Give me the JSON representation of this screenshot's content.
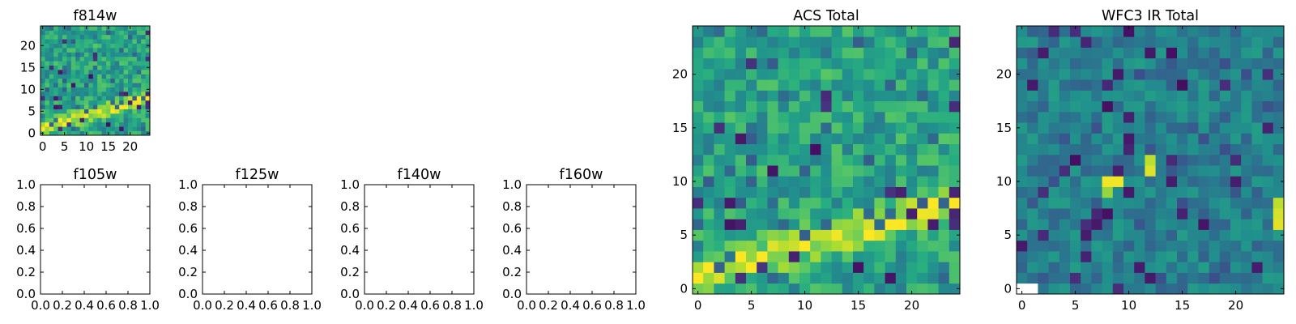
{
  "figure": {
    "panels": {
      "f814w": {
        "title": "f814w",
        "x_ticks": [
          "0",
          "5",
          "10",
          "15",
          "20"
        ],
        "y_ticks": [
          "0",
          "5",
          "10",
          "15",
          "20"
        ]
      },
      "f105w": {
        "title": "f105w",
        "x_ticks": [
          "0.0",
          "0.2",
          "0.4",
          "0.6",
          "0.8",
          "1.0"
        ],
        "y_ticks": [
          "0.0",
          "0.2",
          "0.4",
          "0.6",
          "0.8",
          "1.0"
        ]
      },
      "f125w": {
        "title": "f125w",
        "x_ticks": [
          "0.0",
          "0.2",
          "0.4",
          "0.6",
          "0.8",
          "1.0"
        ],
        "y_ticks": [
          "0.0",
          "0.2",
          "0.4",
          "0.6",
          "0.8",
          "1.0"
        ]
      },
      "f140w": {
        "title": "f140w",
        "x_ticks": [
          "0.0",
          "0.2",
          "0.4",
          "0.6",
          "0.8",
          "1.0"
        ],
        "y_ticks": [
          "0.0",
          "0.2",
          "0.4",
          "0.6",
          "0.8",
          "1.0"
        ]
      },
      "f160w": {
        "title": "f160w",
        "x_ticks": [
          "0.0",
          "0.2",
          "0.4",
          "0.6",
          "0.8",
          "1.0"
        ],
        "y_ticks": [
          "0.0",
          "0.2",
          "0.4",
          "0.6",
          "0.8",
          "1.0"
        ]
      },
      "acs_total": {
        "title": "ACS Total",
        "x_ticks": [
          "0",
          "5",
          "10",
          "15",
          "20"
        ],
        "y_ticks": [
          "0",
          "5",
          "10",
          "15",
          "20"
        ]
      },
      "wfc3_ir_total": {
        "title": "WFC3 IR Total",
        "x_ticks": [
          "0",
          "5",
          "10",
          "15",
          "20"
        ],
        "y_ticks": [
          "0",
          "5",
          "10",
          "15",
          "20"
        ]
      }
    }
  },
  "chart_data": [
    {
      "type": "heatmap",
      "title": "f814w",
      "colormap": "viridis",
      "colorbar": "none",
      "grid": "off",
      "xlim": [
        -0.5,
        24.5
      ],
      "ylim": [
        -0.5,
        24.5
      ],
      "x_ticks": [
        0,
        5,
        10,
        15,
        20
      ],
      "y_ticks": [
        0,
        5,
        10,
        15,
        20
      ],
      "description_of_values": "25x25 pixel grid; bright (yellow) diagonal band rising from lower-left (y≈1) to right edge (y≈8); remainder green/teal noise with scattered dark pixels"
    },
    {
      "type": "heatmap",
      "title": "f105w",
      "xlim": [
        0.0,
        1.0
      ],
      "ylim": [
        0.0,
        1.0
      ],
      "x_ticks": [
        0.0,
        0.2,
        0.4,
        0.6,
        0.8,
        1.0
      ],
      "y_ticks": [
        0.0,
        0.2,
        0.4,
        0.6,
        0.8,
        1.0
      ],
      "values": []
    },
    {
      "type": "heatmap",
      "title": "f125w",
      "xlim": [
        0.0,
        1.0
      ],
      "ylim": [
        0.0,
        1.0
      ],
      "x_ticks": [
        0.0,
        0.2,
        0.4,
        0.6,
        0.8,
        1.0
      ],
      "y_ticks": [
        0.0,
        0.2,
        0.4,
        0.6,
        0.8,
        1.0
      ],
      "values": []
    },
    {
      "type": "heatmap",
      "title": "f140w",
      "xlim": [
        0.0,
        1.0
      ],
      "ylim": [
        0.0,
        1.0
      ],
      "x_ticks": [
        0.0,
        0.2,
        0.4,
        0.6,
        0.8,
        1.0
      ],
      "y_ticks": [
        0.0,
        0.2,
        0.4,
        0.6,
        0.8,
        1.0
      ],
      "values": []
    },
    {
      "type": "heatmap",
      "title": "f160w",
      "xlim": [
        0.0,
        1.0
      ],
      "ylim": [
        0.0,
        1.0
      ],
      "x_ticks": [
        0.0,
        0.2,
        0.4,
        0.6,
        0.8,
        1.0
      ],
      "y_ticks": [
        0.0,
        0.2,
        0.4,
        0.6,
        0.8,
        1.0
      ],
      "values": []
    },
    {
      "type": "heatmap",
      "title": "ACS Total",
      "colormap": "viridis",
      "colorbar": "none",
      "grid": "off",
      "xlim": [
        -0.5,
        24.5
      ],
      "ylim": [
        -0.5,
        24.5
      ],
      "x_ticks": [
        0,
        5,
        10,
        15,
        20
      ],
      "y_ticks": [
        0,
        5,
        10,
        15,
        20
      ],
      "description_of_values": "25x25 pixel grid; same source as f814w; bright yellow band from (0..5, 0..3) rising to (21..24, 7..9); scattered dark purple pixels elsewhere"
    },
    {
      "type": "heatmap",
      "title": "WFC3 IR Total",
      "colormap": "viridis",
      "colorbar": "none",
      "grid": "off",
      "xlim": [
        -0.5,
        24.5
      ],
      "ylim": [
        -0.5,
        24.5
      ],
      "x_ticks": [
        0,
        5,
        10,
        15,
        20
      ],
      "y_ticks": [
        0,
        5,
        10,
        15,
        20
      ],
      "description_of_values": "25x25 pixel grid of teal noise with scattered dark purple pixels, a few bright yellow pixels near (8..9,10), (12,11..12) and (24,6..8); white pixels at (0..1,0)"
    }
  ]
}
